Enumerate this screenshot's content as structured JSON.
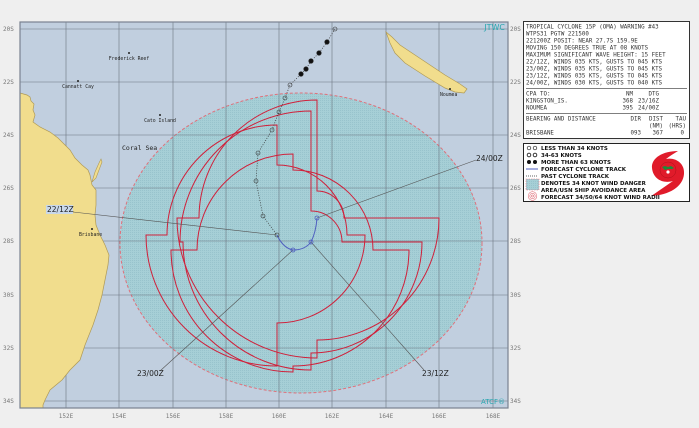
{
  "map": {
    "agency_label": "JTWC",
    "atcf_label": "ATCF®",
    "lat_ticks": [
      "20S",
      "22S",
      "24S",
      "26S",
      "28S",
      "30S",
      "32S",
      "34S"
    ],
    "lon_ticks": [
      "152E",
      "154E",
      "156E",
      "158E",
      "160E",
      "162E",
      "164E",
      "166E",
      "168E"
    ],
    "places": [
      {
        "name": "Frederick Reef"
      },
      {
        "name": "Cannatt Cay"
      },
      {
        "name": "Cato Island"
      },
      {
        "name": "Coral Sea"
      },
      {
        "name": "Brisbane"
      },
      {
        "name": "Noumea"
      }
    ],
    "forecast_labels": [
      "22/12Z",
      "23/00Z",
      "23/12Z",
      "24/00Z"
    ],
    "colors": {
      "ocean": "#c1cfdf",
      "land": "#f1dd8d",
      "danger_area": "#a6cfd6",
      "wind_radii": "#d0203a",
      "forecast_track": "#4f5fc0",
      "grid": "#6b7480"
    }
  },
  "warning": {
    "lines": [
      "TROPICAL CYCLONE 15P (OMA) WARNING #43",
      "WTPS31 PGTW 221500",
      "221200Z POSIT: NEAR 27.7S 159.9E",
      "MOVING 150 DEGREES TRUE AT 08 KNOTS",
      "MAXIMUM SIGNIFICANT WAVE HEIGHT: 15 FEET",
      "22/12Z, WINDS 035 KTS, GUSTS TO 045 KTS",
      "23/00Z, WINDS 035 KTS, GUSTS TO 045 KTS",
      "23/12Z, WINDS 035 KTS, GUSTS TO 045 KTS",
      "24/00Z, WINDS 030 KTS, GUSTS TO 040 KTS"
    ],
    "cpa": {
      "header": [
        "CPA TO:",
        "NM",
        "DTG"
      ],
      "rows": [
        [
          "KINGSTON_IS.",
          "368",
          "23/16Z"
        ],
        [
          "NOUMEA",
          "395",
          "24/00Z"
        ]
      ]
    },
    "bearing": {
      "header": [
        "BEARING AND DISTANCE",
        "DIR",
        "DIST",
        "TAU"
      ],
      "subheader": [
        "",
        "",
        "(NM)",
        "(HRS)"
      ],
      "rows": [
        [
          "BRISBANE",
          "093",
          "367",
          "0"
        ]
      ]
    }
  },
  "legend": {
    "items": [
      {
        "label": "LESS THAN 34 KNOTS",
        "icon": "hollow-cyclone-icon"
      },
      {
        "label": "34-63 KNOTS",
        "icon": "partial-cyclone-icon"
      },
      {
        "label": "MORE THAN 63 KNOTS",
        "icon": "filled-cyclone-icon"
      },
      {
        "label": "FORECAST CYCLONE TRACK",
        "icon": "solid-line-icon"
      },
      {
        "label": "PAST CYCLONE TRACK",
        "icon": "dotted-line-icon"
      },
      {
        "label": "DENOTES 34 KNOT WIND DANGER",
        "icon": "danger-area-icon"
      },
      {
        "label": "AREA/USN SHIP AVOIDANCE AREA",
        "icon": ""
      },
      {
        "label": "FORECAST 34/50/64 KNOT WIND RADII",
        "icon": "wind-radii-icon"
      }
    ]
  }
}
